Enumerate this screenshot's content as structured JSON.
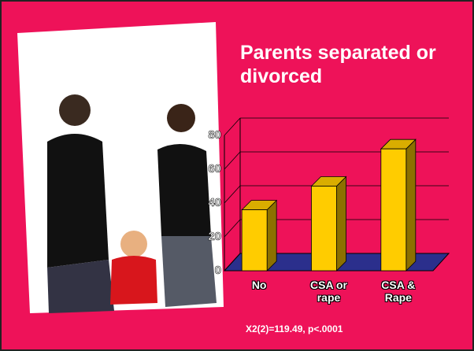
{
  "chart_data": {
    "type": "bar3d",
    "title": "Parents separated or divorced",
    "categories": [
      "No",
      "CSA or rape",
      "CSA & Rape"
    ],
    "values": [
      36,
      50,
      72
    ],
    "color": "#ffcc00",
    "ylim": [
      0,
      80
    ],
    "yticks": [
      0,
      20,
      40,
      60,
      80
    ],
    "grid": true,
    "annotation": "X2(2)=119.49, p<.0001"
  }
}
